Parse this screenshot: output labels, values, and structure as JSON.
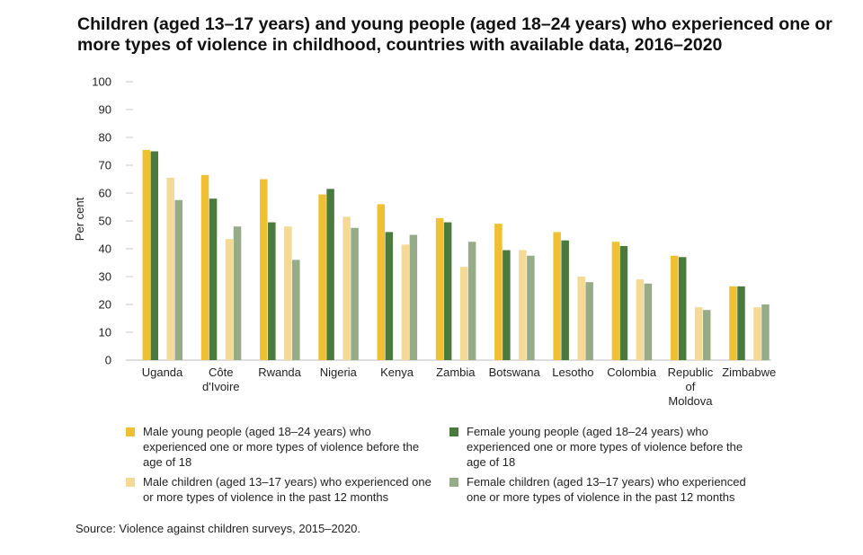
{
  "title": "Children (aged 13–17 years) and young people (aged 18–24 years) who experienced one or more types of violence in childhood, countries with available data, 2016–2020",
  "source": "Source: Violence against children surveys, 2015–2020.",
  "chart_data": {
    "type": "bar",
    "title": "Children (aged 13–17 years) and young people (aged 18–24 years) who experienced one or more types of violence in childhood, countries with available data, 2016–2020",
    "xlabel": "",
    "ylabel": "Per cent",
    "ylim": [
      0,
      100
    ],
    "yticks": [
      0,
      10,
      20,
      30,
      40,
      50,
      60,
      70,
      80,
      90,
      100
    ],
    "grid": true,
    "legend_position": "bottom",
    "categories": [
      "Uganda",
      "Côte d'Ivoire",
      "Rwanda",
      "Nigeria",
      "Kenya",
      "Zambia",
      "Botswana",
      "Lesotho",
      "Colombia",
      "Republic of Moldova",
      "Zimbabwe"
    ],
    "category_lines": [
      [
        "Uganda"
      ],
      [
        "Côte",
        "d'Ivoire"
      ],
      [
        "Rwanda"
      ],
      [
        "Nigeria"
      ],
      [
        "Kenya"
      ],
      [
        "Zambia"
      ],
      [
        "Botswana"
      ],
      [
        "Lesotho"
      ],
      [
        "Colombia"
      ],
      [
        "Republic",
        "of",
        "Moldova"
      ],
      [
        "Zimbabwe"
      ]
    ],
    "series": [
      {
        "name": "Male young people (aged 18–24 years) who experienced one or more types of violence before the age of 18",
        "color": "#F0C033",
        "values": [
          75.5,
          66.5,
          65,
          59.5,
          56,
          51,
          49,
          46,
          42.5,
          37.5,
          26.5
        ]
      },
      {
        "name": "Female young people (aged 18–24 years) who experienced one or more types of violence before the age of 18",
        "color": "#4A7B3C",
        "values": [
          75,
          58,
          49.5,
          61.5,
          46,
          49.5,
          39.5,
          43,
          41,
          37,
          26.5
        ]
      },
      {
        "name": "Male children (aged 13–17 years) who experienced one or more types of violence in the past 12 months",
        "color": "#F5DA96",
        "values": [
          65.5,
          43.5,
          48,
          51.5,
          41.5,
          33.5,
          39.5,
          30,
          29,
          19,
          19
        ]
      },
      {
        "name": "Female children (aged 13–17 years) who experienced one or more types of violence in the past 12 months",
        "color": "#96AB88",
        "values": [
          57.5,
          48,
          36,
          47.5,
          45,
          42.5,
          37.5,
          28,
          27.5,
          18,
          20
        ]
      }
    ]
  }
}
